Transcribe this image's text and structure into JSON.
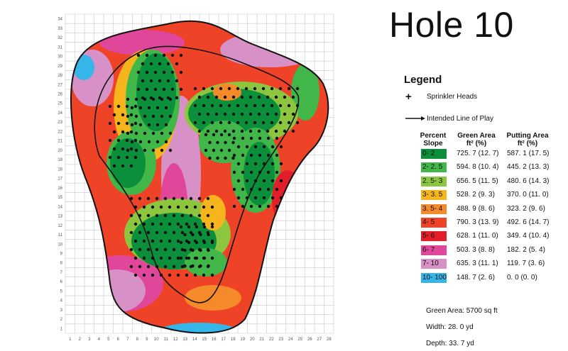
{
  "title": "Hole 10",
  "legend": {
    "title": "Legend",
    "sprinkler_label": "Sprinkler Heads",
    "line_label": "Intended Line of Play",
    "col_slope": "Percent Slope",
    "col_green": "Green Area ft² (%)",
    "col_putting": "Putting Area ft² (%)",
    "rows": [
      {
        "slope": "0- 2",
        "green": "725. 7 (12. 7)",
        "putting": "587. 1 (17. 5)",
        "color": "#0b8f3a"
      },
      {
        "slope": "2- 2. 5",
        "green": "594. 8 (10. 4)",
        "putting": "445. 2 (13. 3)",
        "color": "#41b649"
      },
      {
        "slope": "2. 5- 3",
        "green": "656. 5 (11. 5)",
        "putting": "480. 6 (14. 3)",
        "color": "#8cc63f"
      },
      {
        "slope": "3- 3. 5",
        "green": "528. 2 (9. 3)",
        "putting": "370. 0 (11. 0)",
        "color": "#f6b51c"
      },
      {
        "slope": "3. 5- 4",
        "green": "488. 9 (8. 6)",
        "putting": "323. 2 (9. 6)",
        "color": "#f58a2a"
      },
      {
        "slope": "4- 5",
        "green": "790. 3 (13. 9)",
        "putting": "492. 6 (14. 7)",
        "color": "#ef4327"
      },
      {
        "slope": "5- 6",
        "green": "628. 1 (11. 0)",
        "putting": "349. 4 (10. 4)",
        "color": "#e21e2b"
      },
      {
        "slope": "6- 7",
        "green": "503. 3 (8. 8)",
        "putting": "182. 2 (5. 4)",
        "color": "#e0479a"
      },
      {
        "slope": "7- 10",
        "green": "635. 3 (11. 1)",
        "putting": "119. 7 (3. 6)",
        "color": "#d891c6"
      },
      {
        "slope": "10- 100",
        "green": "148. 7 (2. 6)",
        "putting": "0. 0 (0. 0)",
        "color": "#36b5e9"
      }
    ]
  },
  "stats": {
    "green_area": "Green Area:  5700 sq ft",
    "width": "Width:  28. 0 yd",
    "depth": "Depth:  33. 7 yd"
  },
  "map": {
    "x_ticks": [
      "1",
      "2",
      "3",
      "4",
      "5",
      "6",
      "7",
      "8",
      "9",
      "10",
      "11",
      "12",
      "13",
      "14",
      "15",
      "16",
      "17",
      "18",
      "19",
      "20",
      "21",
      "22",
      "23",
      "24",
      "25",
      "26",
      "27",
      "28"
    ],
    "y_ticks": [
      "1",
      "2",
      "3",
      "4",
      "5",
      "6",
      "7",
      "8",
      "9",
      "10",
      "11",
      "12",
      "13",
      "14",
      "15",
      "16",
      "17",
      "18",
      "19",
      "20",
      "21",
      "22",
      "23",
      "24",
      "25",
      "26",
      "27",
      "28",
      "29",
      "30",
      "31",
      "32",
      "33",
      "34"
    ]
  }
}
